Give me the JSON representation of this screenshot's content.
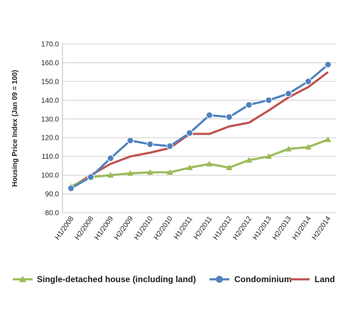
{
  "chart_data": {
    "type": "line",
    "ylabel": "Housing Price Index (Jan 09 = 100)",
    "xlabel": "",
    "ylim": [
      80,
      170
    ],
    "yticks": [
      "80.0",
      "90.0",
      "100.0",
      "110.0",
      "120.0",
      "130.0",
      "140.0",
      "150.0",
      "160.0",
      "170.0"
    ],
    "categories": [
      "H1/2008",
      "H2/2008",
      "H1/2009",
      "H2/2009",
      "H1/2010",
      "H2/2010",
      "H1/2011",
      "H2/2011",
      "H1/2012",
      "H2/2012",
      "H1/2013",
      "H2/2013",
      "H1/2014",
      "H2/2014"
    ],
    "grid": "horizontal",
    "legend_position": "bottom",
    "series": [
      {
        "name": "Single-detached house (including land)",
        "color": "#9bbb59",
        "marker": "triangle",
        "values": [
          94,
          99,
          100,
          101,
          101.5,
          101.5,
          104,
          106,
          104,
          108,
          110,
          114,
          115,
          119
        ]
      },
      {
        "name": "Condominium",
        "color": "#4f81bd",
        "marker": "circle",
        "values": [
          93,
          99,
          109,
          118.5,
          116.5,
          115.5,
          122.5,
          132,
          131,
          137.5,
          140,
          143.5,
          150,
          159
        ]
      },
      {
        "name": "Land",
        "color": "#c0504d",
        "marker": "none",
        "values": [
          93.5,
          100,
          106,
          110,
          112,
          114.5,
          122,
          122,
          126,
          128,
          134.5,
          141.5,
          147,
          155
        ]
      }
    ]
  }
}
